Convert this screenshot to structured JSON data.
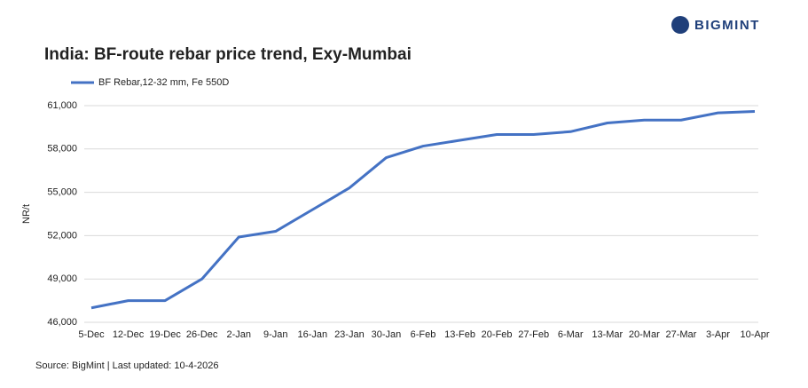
{
  "brand": "BIGMINT",
  "chart_data": {
    "type": "line",
    "title": "India: BF-route rebar price trend, Exy-Mumbai",
    "y_label": "NR/t",
    "source": "Source: BigMint | Last updated: 10-4-2026",
    "categories": [
      "5-Dec",
      "12-Dec",
      "19-Dec",
      "26-Dec",
      "2-Jan",
      "9-Jan",
      "16-Jan",
      "23-Jan",
      "30-Jan",
      "6-Feb",
      "13-Feb",
      "20-Feb",
      "27-Feb",
      "6-Mar",
      "13-Mar",
      "20-Mar",
      "27-Mar",
      "3-Apr",
      "10-Apr"
    ],
    "series": [
      {
        "name": "BF Rebar,12-32 mm, Fe 550D",
        "color": "#4472c4",
        "values": [
          47000,
          47500,
          47500,
          49000,
          51900,
          52300,
          53800,
          55300,
          57400,
          58200,
          58600,
          59000,
          59000,
          59200,
          59800,
          60000,
          60000,
          60500,
          60600
        ]
      }
    ],
    "ylim": [
      46000,
      61000
    ],
    "yticks": [
      {
        "value": 46000,
        "label": "46,000"
      },
      {
        "value": 49000,
        "label": "49,000"
      },
      {
        "value": 52000,
        "label": "52,000"
      },
      {
        "value": 55000,
        "label": "55,000"
      },
      {
        "value": 58000,
        "label": "58,000"
      },
      {
        "value": 61000,
        "label": "61,000"
      }
    ],
    "grid": true
  }
}
